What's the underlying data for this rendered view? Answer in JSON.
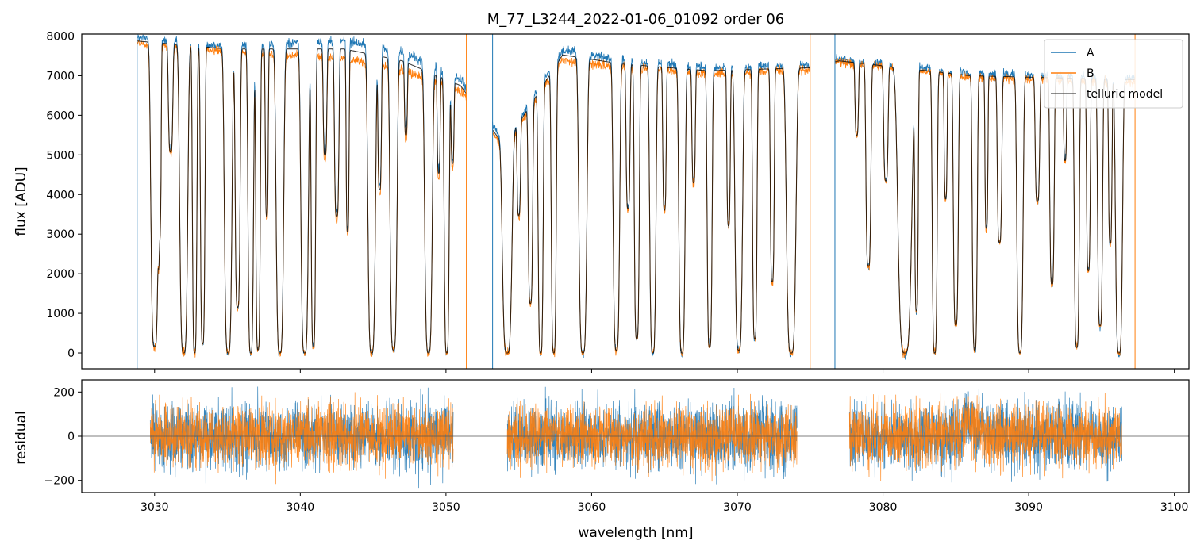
{
  "title": "M_77_L3244_2022-01-06_01092  order 06",
  "colors": {
    "A": "#1f77b4",
    "B": "#ff7f0e",
    "model": "#000000",
    "zero_line": "#555555",
    "axes": "#000000"
  },
  "chart_data": [
    {
      "type": "line",
      "panel": "top",
      "ylabel": "flux [ADU]",
      "xlim": [
        3025.0,
        3101.0
      ],
      "ylim": [
        -400,
        8050
      ],
      "xticks": [
        3030,
        3040,
        3050,
        3060,
        3070,
        3080,
        3090,
        3100
      ],
      "yticks": [
        0,
        1000,
        2000,
        3000,
        4000,
        5000,
        6000,
        7000,
        8000
      ],
      "legend": {
        "position": "top-right",
        "entries": [
          "A",
          "B",
          "telluric model"
        ]
      },
      "segments": [
        {
          "start": 3028.8,
          "end": 3051.4
        },
        {
          "start": 3053.2,
          "end": 3075.0
        },
        {
          "start": 3076.7,
          "end": 3097.3
        }
      ],
      "series": [
        {
          "name": "A",
          "continuum": [
            [
              3028.8,
              7950
            ],
            [
              3035,
              7750
            ],
            [
              3043,
              7900
            ],
            [
              3047,
              7600
            ],
            [
              3051,
              6900
            ],
            [
              3054,
              5300
            ],
            [
              3058,
              7650
            ],
            [
              3062,
              7400
            ],
            [
              3068,
              7200
            ],
            [
              3075,
              7250
            ],
            [
              3077,
              7400
            ],
            [
              3086,
              7050
            ],
            [
              3097,
              6950
            ]
          ]
        },
        {
          "name": "B",
          "continuum": [
            [
              3028.8,
              7800
            ],
            [
              3035,
              7600
            ],
            [
              3043,
              7450
            ],
            [
              3047,
              7150
            ],
            [
              3051,
              6600
            ],
            [
              3054,
              5150
            ],
            [
              3058,
              7400
            ],
            [
              3062,
              7200
            ],
            [
              3068,
              7050
            ],
            [
              3075,
              7150
            ],
            [
              3077,
              7350
            ],
            [
              3086,
              6950
            ],
            [
              3097,
              6850
            ]
          ]
        },
        {
          "name": "telluric model",
          "lines": [
            [
              3030.0,
              0.3,
              0.98
            ],
            [
              3030.35,
              0.12,
              0.6
            ],
            [
              3031.1,
              0.18,
              0.35
            ],
            [
              3032.0,
              0.32,
              1.0
            ],
            [
              3032.75,
              0.18,
              1.0
            ],
            [
              3033.3,
              0.18,
              0.97
            ],
            [
              3035.05,
              0.3,
              1.0
            ],
            [
              3035.7,
              0.2,
              0.85
            ],
            [
              3036.6,
              0.22,
              1.0
            ],
            [
              3037.1,
              0.18,
              0.99
            ],
            [
              3037.7,
              0.12,
              0.55
            ],
            [
              3038.6,
              0.3,
              1.0
            ],
            [
              3040.3,
              0.3,
              1.0
            ],
            [
              3040.9,
              0.18,
              0.98
            ],
            [
              3041.7,
              0.15,
              0.35
            ],
            [
              3042.5,
              0.18,
              0.55
            ],
            [
              3043.25,
              0.12,
              0.6
            ],
            [
              3044.9,
              0.3,
              1.0
            ],
            [
              3045.45,
              0.14,
              0.45
            ],
            [
              3046.4,
              0.28,
              0.99
            ],
            [
              3047.25,
              0.12,
              0.25
            ],
            [
              3048.8,
              0.3,
              1.0
            ],
            [
              3049.5,
              0.12,
              0.35
            ],
            [
              3050.05,
              0.2,
              1.0
            ],
            [
              3050.45,
              0.12,
              0.3
            ],
            [
              3054.2,
              0.38,
              1.0
            ],
            [
              3055.0,
              0.14,
              0.4
            ],
            [
              3055.8,
              0.18,
              0.8
            ],
            [
              3056.5,
              0.2,
              1.0
            ],
            [
              3057.4,
              0.2,
              1.0
            ],
            [
              3059.4,
              0.32,
              1.0
            ],
            [
              3061.7,
              0.26,
              0.99
            ],
            [
              3062.5,
              0.16,
              0.5
            ],
            [
              3063.1,
              0.2,
              0.95
            ],
            [
              3064.2,
              0.25,
              1.0
            ],
            [
              3065.0,
              0.14,
              0.5
            ],
            [
              3066.2,
              0.25,
              1.0
            ],
            [
              3067.0,
              0.14,
              0.4
            ],
            [
              3068.1,
              0.2,
              0.98
            ],
            [
              3069.4,
              0.14,
              0.55
            ],
            [
              3070.1,
              0.3,
              0.99
            ],
            [
              3071.2,
              0.18,
              0.95
            ],
            [
              3072.4,
              0.16,
              0.75
            ],
            [
              3073.7,
              0.38,
              1.0
            ],
            [
              3078.2,
              0.14,
              0.25
            ],
            [
              3079.0,
              0.2,
              0.7
            ],
            [
              3080.2,
              0.18,
              0.4
            ],
            [
              3081.5,
              0.55,
              1.0
            ],
            [
              3082.3,
              0.14,
              0.85
            ],
            [
              3083.55,
              0.2,
              1.0
            ],
            [
              3084.3,
              0.12,
              0.45
            ],
            [
              3085.0,
              0.2,
              0.9
            ],
            [
              3086.3,
              0.2,
              0.99
            ],
            [
              3087.1,
              0.12,
              0.55
            ],
            [
              3088.0,
              0.18,
              0.6
            ],
            [
              3089.4,
              0.25,
              1.0
            ],
            [
              3090.6,
              0.18,
              0.45
            ],
            [
              3091.6,
              0.18,
              0.75
            ],
            [
              3092.5,
              0.12,
              0.3
            ],
            [
              3093.3,
              0.2,
              0.98
            ],
            [
              3094.1,
              0.15,
              0.7
            ],
            [
              3094.9,
              0.2,
              0.9
            ],
            [
              3095.6,
              0.14,
              0.6
            ],
            [
              3096.2,
              0.28,
              1.0
            ]
          ]
        }
      ]
    },
    {
      "type": "line",
      "panel": "bottom",
      "xlabel": "wavelength [nm]",
      "ylabel": "residual",
      "xlim": [
        3025.0,
        3101.0
      ],
      "ylim": [
        -255,
        255
      ],
      "yticks": [
        -200,
        0,
        200
      ],
      "segments": [
        {
          "start": 3029.7,
          "end": 3050.5
        },
        {
          "start": 3054.2,
          "end": 3074.1
        },
        {
          "start": 3077.7,
          "end": 3096.4
        }
      ],
      "series": [
        {
          "name": "A",
          "amplitude": 75
        },
        {
          "name": "B",
          "amplitude": 70
        }
      ]
    }
  ]
}
